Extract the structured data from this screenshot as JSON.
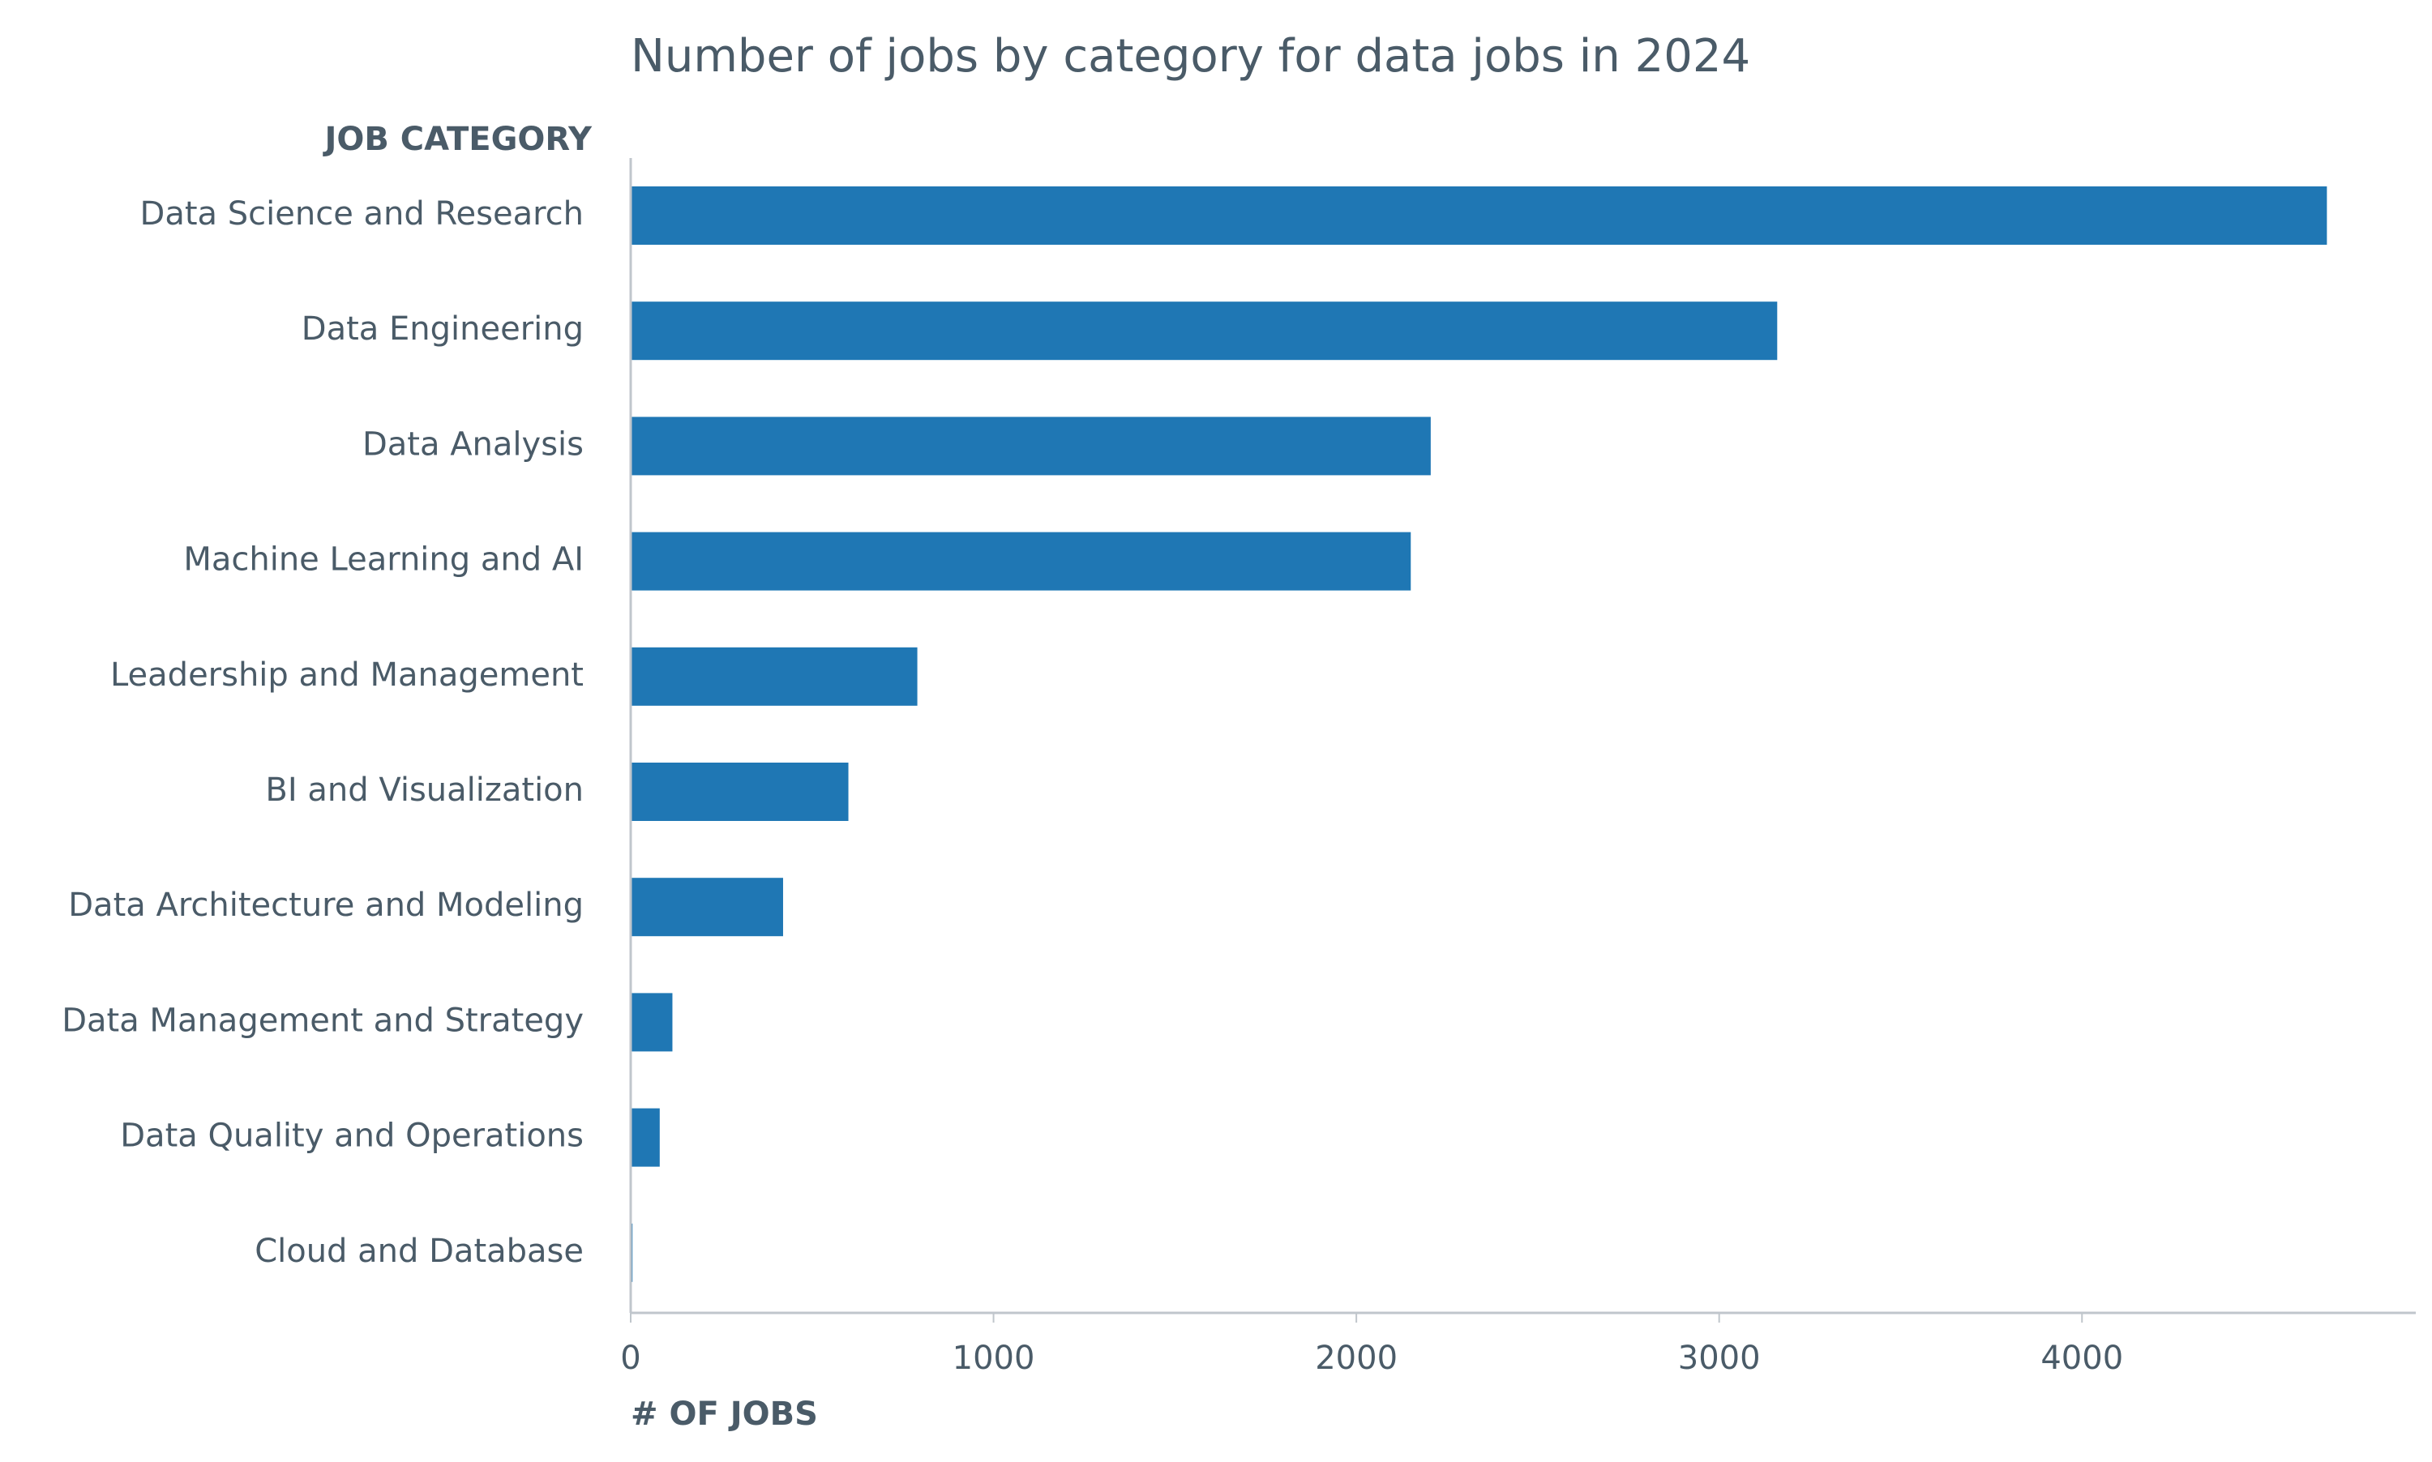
{
  "chart_data": {
    "type": "bar",
    "orientation": "horizontal",
    "title": "Number of jobs by category for data jobs in 2024",
    "ylabel": "JOB CATEGORY",
    "xlabel": "# OF JOBS",
    "categories": [
      "Data Science and Research",
      "Data Engineering",
      "Data Analysis",
      "Machine Learning and AI",
      "Leadership and Management",
      "BI and Visualization",
      "Data Architecture and Modeling",
      "Data Management and Strategy",
      "Data Quality and Operations",
      "Cloud and Database"
    ],
    "values": [
      4675,
      3160,
      2205,
      2150,
      790,
      600,
      420,
      115,
      80,
      5
    ],
    "xlim": [
      0,
      4920
    ],
    "xticks": [
      0,
      1000,
      2000,
      3000,
      4000
    ],
    "grid": false,
    "bar_color": "#1f77b4",
    "text_color": "#4a5b68",
    "axis_color": "#c0c6cc"
  }
}
